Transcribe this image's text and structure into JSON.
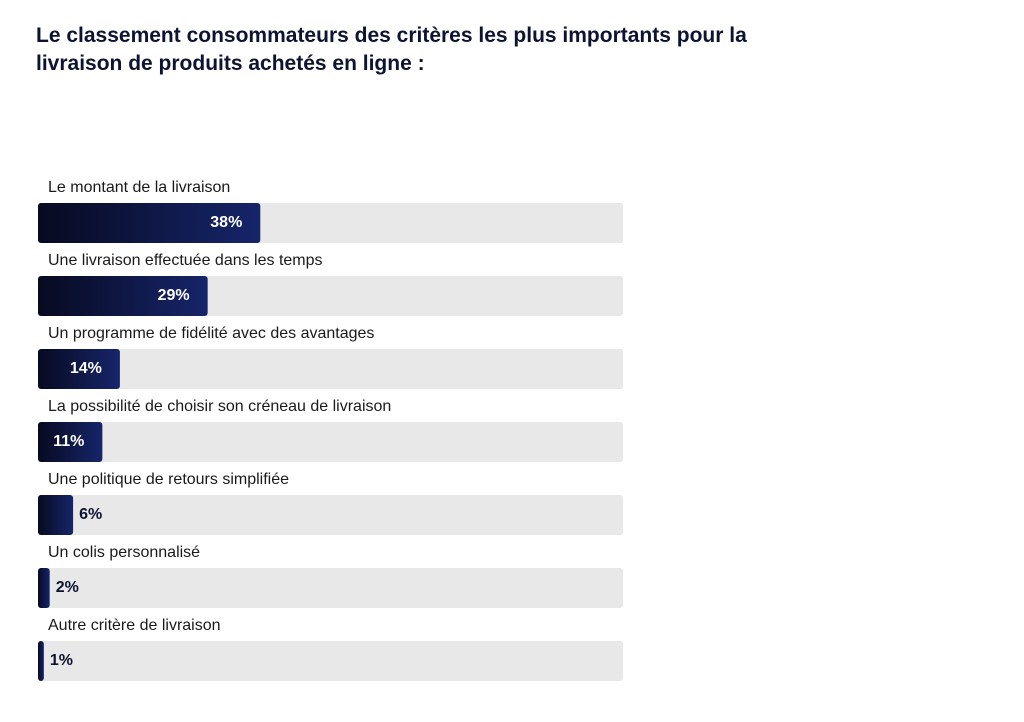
{
  "chart_data": {
    "type": "bar",
    "orientation": "horizontal",
    "title": "Le classement consommateurs des critères les plus importants pour la livraison de produits achetés en ligne :",
    "categories": [
      "Le montant de la livraison",
      "Une livraison effectuée dans les temps",
      "Un programme de fidélité avec des avantages",
      "La possibilité de choisir son créneau de livraison",
      "Une politique de retours simplifiée",
      "Un colis personnalisé",
      "Autre critère de livraison"
    ],
    "values": [
      38,
      29,
      14,
      11,
      6,
      2,
      1
    ],
    "value_labels": [
      "38%",
      "29%",
      "14%",
      "11%",
      "6%",
      "2%",
      "1%"
    ],
    "color": "#16256a",
    "xlim": [
      0,
      100
    ]
  }
}
